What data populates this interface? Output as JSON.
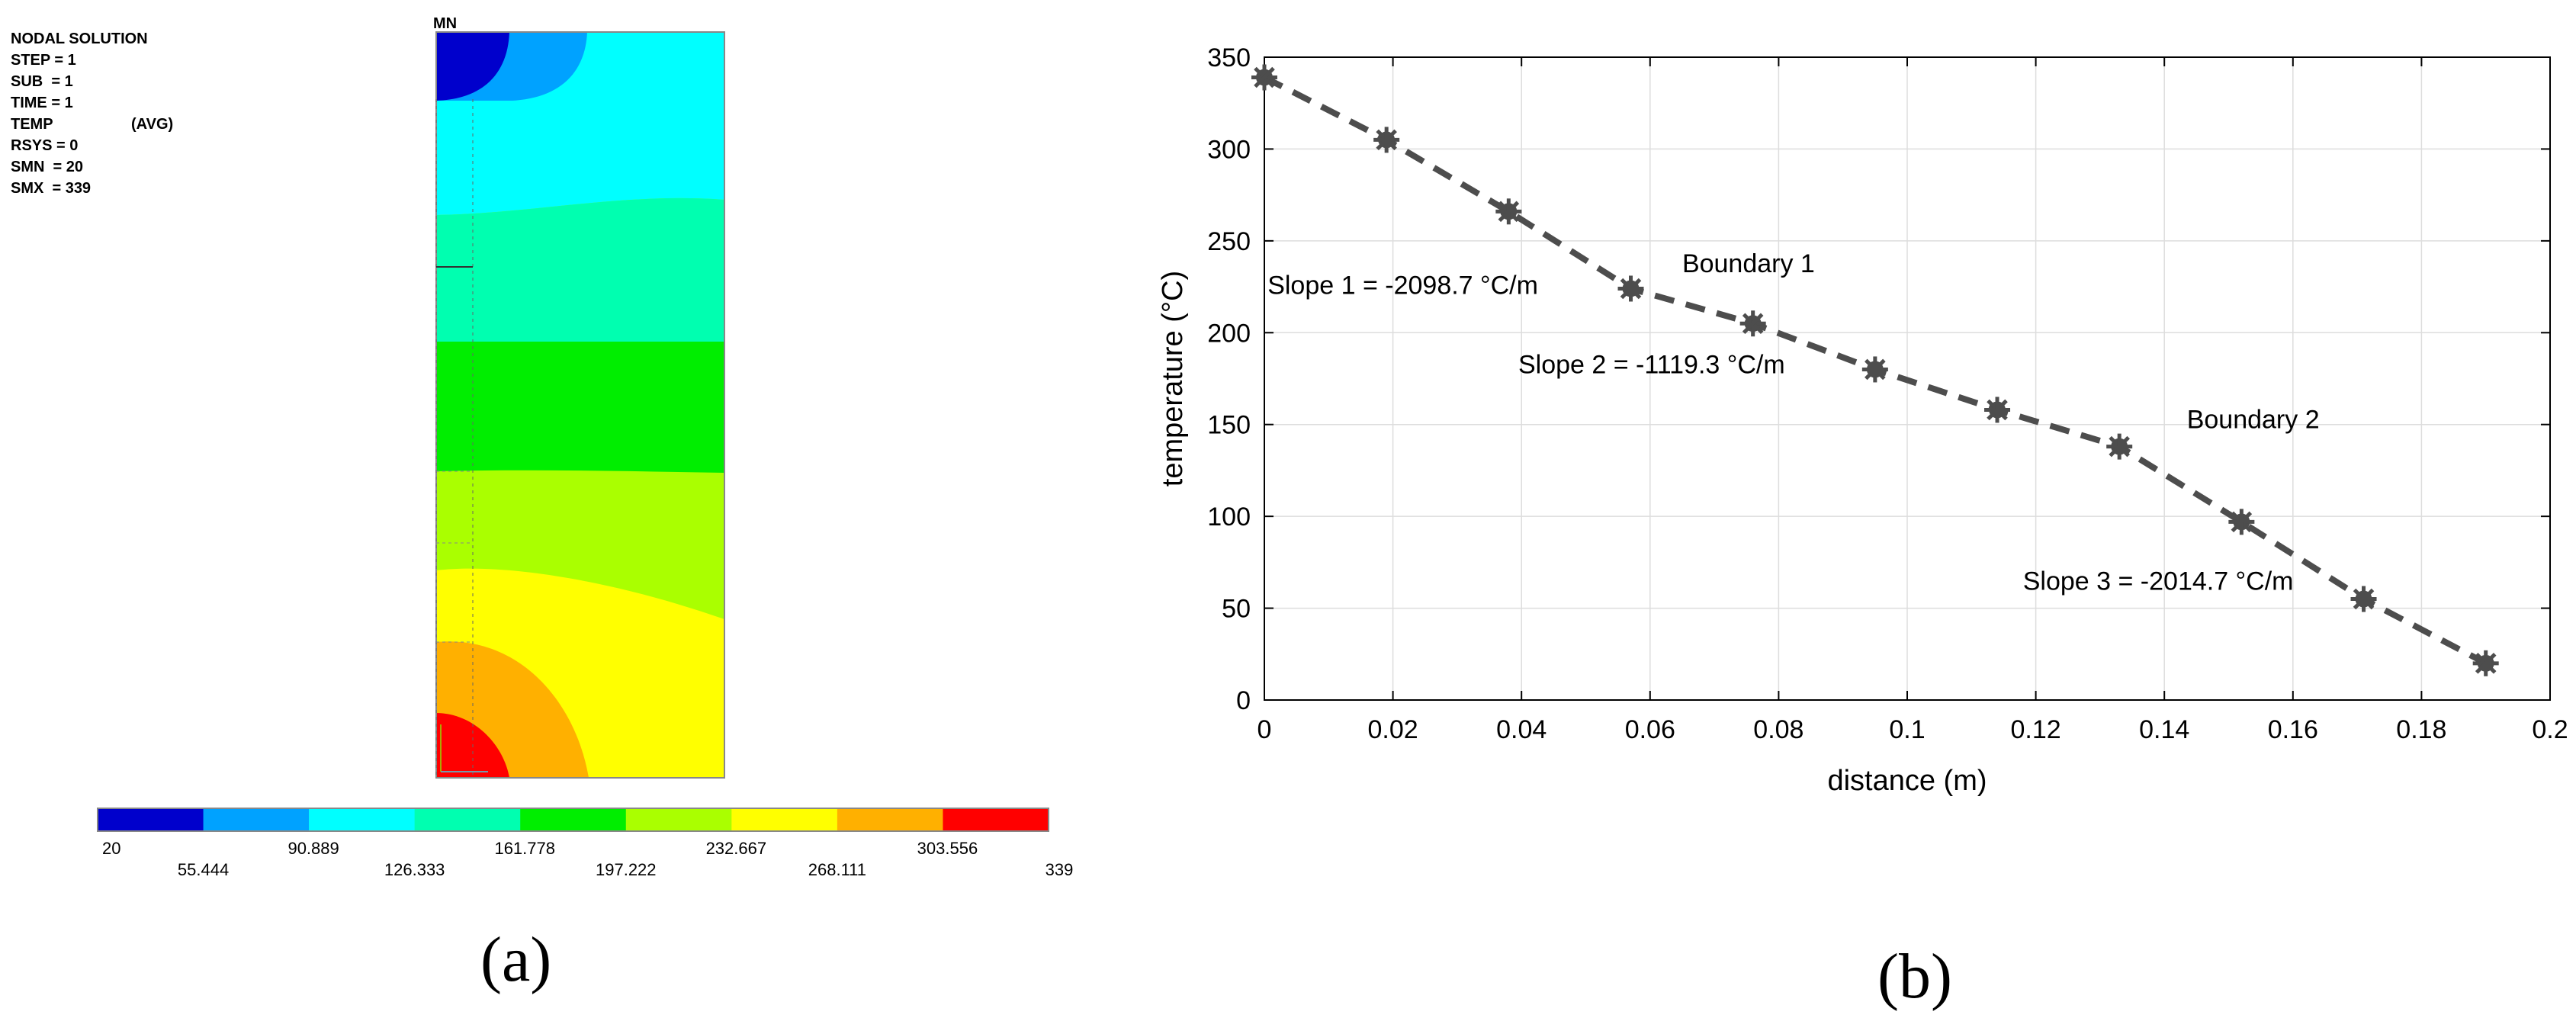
{
  "panel_a": {
    "info": {
      "title": "NODAL SOLUTION",
      "step": "STEP = 1",
      "sub": "SUB  = 1",
      "time": "TIME = 1",
      "temp": "TEMP",
      "avg": "(AVG)",
      "rsys": "RSYS = 0",
      "smn": "SMN  = 20",
      "smx": "SMX  = 339"
    },
    "mn_label": "MN",
    "contour_colors": [
      "#0000cc",
      "#00a2ff",
      "#00ffff",
      "#00ffb0",
      "#00ee00",
      "#aaff00",
      "#ffff00",
      "#ffb000",
      "#ff0000"
    ],
    "legend_top": [
      "20",
      "90.889",
      "161.778",
      "232.667",
      "303.556"
    ],
    "legend_bottom": [
      "55.444",
      "126.333",
      "197.222",
      "268.111",
      "339"
    ],
    "caption": "(a)"
  },
  "chart_data": {
    "type": "line",
    "x": [
      0,
      0.019,
      0.038,
      0.057,
      0.076,
      0.095,
      0.114,
      0.133,
      0.152,
      0.171,
      0.19
    ],
    "series": [
      {
        "values": [
          339,
          305,
          266,
          224,
          205,
          180,
          158,
          138,
          97,
          55,
          20
        ]
      }
    ],
    "xlabel": "distance (m)",
    "ylabel": "temperature (°C)",
    "xlim": [
      0,
      0.2
    ],
    "ylim": [
      0,
      350
    ],
    "xticks": [
      0,
      0.02,
      0.04,
      0.06,
      0.08,
      0.1,
      0.12,
      0.14,
      0.16,
      0.18,
      0.2
    ],
    "xtick_labels": [
      "0",
      "0.02",
      "0.04",
      "0.06",
      "0.08",
      "0.1",
      "0.12",
      "0.14",
      "0.16",
      "0.18",
      "0.2"
    ],
    "yticks": [
      0,
      50,
      100,
      150,
      200,
      250,
      300,
      350
    ],
    "ytick_labels": [
      "0",
      "50",
      "100",
      "150",
      "200",
      "250",
      "300",
      "350"
    ],
    "grid": true,
    "line_color": "#4d4d4d",
    "annotations": [
      {
        "text": "Boundary 1",
        "x": 0.065,
        "y": 233
      },
      {
        "text": "Slope 1 = -2098.7 °C/m",
        "x": 0.0005,
        "y": 221
      },
      {
        "text": "Slope 2 = -1119.3 °C/m",
        "x": 0.0395,
        "y": 178
      },
      {
        "text": "Boundary 2",
        "x": 0.1435,
        "y": 148
      },
      {
        "text": "Slope 3 = -2014.7 °C/m",
        "x": 0.118,
        "y": 60
      }
    ],
    "caption": "(b)"
  }
}
